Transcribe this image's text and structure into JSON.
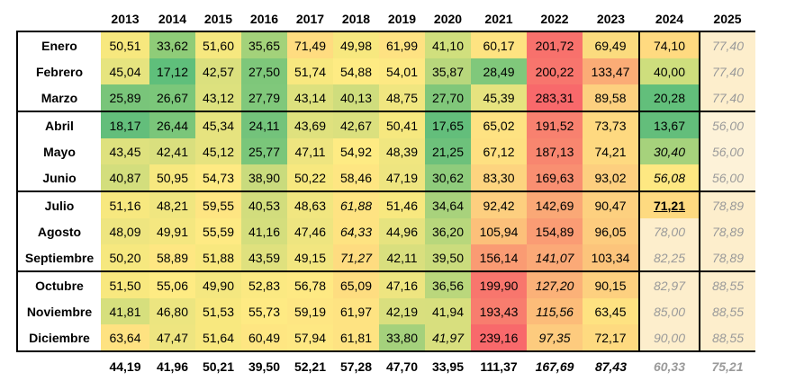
{
  "years": [
    "2013",
    "2014",
    "2015",
    "2016",
    "2017",
    "2018",
    "2019",
    "2020",
    "2021",
    "2022",
    "2023",
    "2024",
    "2025"
  ],
  "rows": [
    {
      "month": "Enero",
      "values": [
        "50,51",
        "33,62",
        "51,60",
        "35,65",
        "71,49",
        "49,98",
        "61,99",
        "41,10",
        "60,17",
        "201,72",
        "69,49",
        "74,10",
        "77,40"
      ],
      "colors": [
        "#f7e87e",
        "#8fcc78",
        "#f6e87f",
        "#a3d27a",
        "#ffdc80",
        "#f7e87f",
        "#fee282",
        "#d0df7d",
        "#fee381",
        "#f8716c",
        "#fbdb7e",
        "#ffda80",
        "#fdeecc"
      ]
    },
    {
      "month": "Febrero",
      "values": [
        "45,04",
        "17,12",
        "42,57",
        "27,50",
        "51,74",
        "54,88",
        "54,01",
        "35,87",
        "28,49",
        "200,22",
        "133,47",
        "40,00",
        "77,40"
      ],
      "colors": [
        "#e6e47f",
        "#5fbf7b",
        "#dbe07e",
        "#7ec77a",
        "#f8e87f",
        "#feeb83",
        "#fde983",
        "#b8d77c",
        "#80c87b",
        "#f8756d",
        "#fbac76",
        "#cede7d",
        "#fdeecc"
      ]
    },
    {
      "month": "Marzo",
      "values": [
        "25,89",
        "26,67",
        "43,12",
        "27,79",
        "43,14",
        "40,13",
        "48,75",
        "27,70",
        "45,39",
        "283,31",
        "89,58",
        "20,28",
        "77,40"
      ],
      "colors": [
        "#79c57a",
        "#7bc77a",
        "#dde17e",
        "#80c87b",
        "#dde17e",
        "#cfdd7d",
        "#f0e680",
        "#80c77a",
        "#e6e37f",
        "#f8696b",
        "#fdd07f",
        "#62bf7b",
        "#fdeecc"
      ]
    },
    {
      "month": "Abril",
      "values": [
        "18,17",
        "26,44",
        "45,34",
        "24,11",
        "43,69",
        "42,67",
        "50,41",
        "17,65",
        "65,02",
        "191,52",
        "73,73",
        "13,67",
        "56,00"
      ],
      "colors": [
        "#63be7b",
        "#7ac67a",
        "#e6e37f",
        "#73c37b",
        "#dfe17e",
        "#dbe07e",
        "#f6e87f",
        "#63be7b",
        "#fee282",
        "#f8816f",
        "#fed980",
        "#63be7b",
        "#fdf2d8"
      ]
    },
    {
      "month": "Mayo",
      "values": [
        "43,45",
        "42,41",
        "45,12",
        "25,77",
        "47,11",
        "54,92",
        "48,39",
        "21,25",
        "67,12",
        "187,13",
        "74,21",
        "30,40",
        "56,00"
      ],
      "colors": [
        "#dee17e",
        "#d9df7e",
        "#e6e37f",
        "#7ac67a",
        "#eee580",
        "#feeb83",
        "#f0e680",
        "#6dc17b",
        "#fee081",
        "#f8866f",
        "#fed980",
        "#a6d27c",
        "#fdf2d8"
      ]
    },
    {
      "month": "Junio",
      "values": [
        "40,87",
        "50,95",
        "54,73",
        "38,90",
        "50,22",
        "58,46",
        "47,19",
        "30,62",
        "83,30",
        "169,63",
        "93,02",
        "56,08",
        "56,00"
      ],
      "colors": [
        "#d3de7d",
        "#f7e87f",
        "#feea83",
        "#c9db7d",
        "#f7e87f",
        "#fee682",
        "#eee580",
        "#8fcc7c",
        "#fdd47f",
        "#f98f71",
        "#fdcf7f",
        "#fee882",
        "#fdf2d8"
      ]
    },
    {
      "month": "Julio",
      "values": [
        "51,16",
        "48,21",
        "59,55",
        "40,53",
        "48,63",
        "61,88",
        "51,46",
        "34,64",
        "92,42",
        "142,69",
        "90,47",
        "71,21",
        "78,89"
      ],
      "colors": [
        "#f7e87f",
        "#f0e680",
        "#fee582",
        "#d2dd7d",
        "#f1e680",
        "#fee382",
        "#f8e87f",
        "#a8d27c",
        "#fdcf7f",
        "#faa876",
        "#fdd07f",
        "#feda80",
        "#fdeecc"
      ]
    },
    {
      "month": "Agosto",
      "values": [
        "48,09",
        "49,91",
        "55,59",
        "41,16",
        "47,46",
        "64,33",
        "44,96",
        "36,20",
        "105,94",
        "154,89",
        "96,05",
        "78,00",
        "78,89"
      ],
      "colors": [
        "#eee580",
        "#f4e780",
        "#feea83",
        "#d4de7d",
        "#eee580",
        "#fee381",
        "#e6e37f",
        "#b8d77c",
        "#fcc07a",
        "#fa9c74",
        "#fdcc7e",
        "#fdeecc",
        "#fdeecc"
      ]
    },
    {
      "month": "Septiembre",
      "values": [
        "50,20",
        "58,89",
        "51,88",
        "43,59",
        "49,15",
        "71,27",
        "42,11",
        "39,50",
        "156,14",
        "141,07",
        "103,34",
        "82,25",
        "78,89"
      ],
      "colors": [
        "#f6e87f",
        "#fee782",
        "#f8e87f",
        "#dfe17e",
        "#f2e680",
        "#fedc80",
        "#d9df7e",
        "#cbdc7d",
        "#fa9b73",
        "#fba977",
        "#fcc47b",
        "#fdeecc",
        "#fdeecc"
      ]
    },
    {
      "month": "Octubre",
      "values": [
        "51,50",
        "55,06",
        "49,90",
        "52,83",
        "56,78",
        "65,09",
        "47,16",
        "36,56",
        "199,90",
        "127,20",
        "90,15",
        "82,97",
        "88,55"
      ],
      "colors": [
        "#f8e87f",
        "#feeb83",
        "#f4e780",
        "#fbe982",
        "#fee983",
        "#fedd80",
        "#eee580",
        "#bad77c",
        "#f8766d",
        "#fbb178",
        "#fdd07f",
        "#fdeecc",
        "#fdeecc"
      ]
    },
    {
      "month": "Noviembre",
      "values": [
        "41,81",
        "46,80",
        "51,53",
        "55,73",
        "59,19",
        "61,97",
        "42,19",
        "41,94",
        "193,43",
        "115,56",
        "63,45",
        "85,00",
        "88,55"
      ],
      "colors": [
        "#d6df7d",
        "#ece580",
        "#f8e87f",
        "#feea83",
        "#fee683",
        "#fee382",
        "#d9df7e",
        "#d8df7e",
        "#f87d6e",
        "#fcbc79",
        "#fee281",
        "#fdeecc",
        "#fdeecc"
      ]
    },
    {
      "month": "Diciembre",
      "values": [
        "63,64",
        "47,47",
        "51,64",
        "60,49",
        "57,94",
        "61,81",
        "33,80",
        "41,97",
        "239,16",
        "97,35",
        "72,17",
        "90,00",
        "88,55"
      ],
      "colors": [
        "#fee281",
        "#eee580",
        "#f8e87f",
        "#fee682",
        "#fee883",
        "#fee382",
        "#a4d17c",
        "#d8df7e",
        "#f8696b",
        "#fdcb7e",
        "#feda80",
        "#fdeecc",
        "#fdeecc"
      ]
    }
  ],
  "italic_cells": [
    [
      3,
      12
    ],
    [
      4,
      11
    ],
    [
      4,
      12
    ],
    [
      5,
      11
    ],
    [
      5,
      12
    ],
    [
      6,
      5
    ],
    [
      6,
      12
    ],
    [
      7,
      5
    ],
    [
      7,
      11
    ],
    [
      7,
      12
    ],
    [
      8,
      5
    ],
    [
      8,
      9
    ],
    [
      8,
      11
    ],
    [
      8,
      12
    ],
    [
      9,
      9
    ],
    [
      9,
      11
    ],
    [
      9,
      12
    ],
    [
      10,
      9
    ],
    [
      10,
      11
    ],
    [
      10,
      12
    ],
    [
      11,
      7
    ],
    [
      11,
      9
    ],
    [
      11,
      11
    ],
    [
      11,
      12
    ],
    [
      0,
      12
    ],
    [
      1,
      12
    ],
    [
      2,
      12
    ]
  ],
  "grey_cells": [
    [
      0,
      12
    ],
    [
      1,
      12
    ],
    [
      2,
      12
    ],
    [
      3,
      12
    ],
    [
      4,
      12
    ],
    [
      5,
      12
    ],
    [
      6,
      12
    ],
    [
      7,
      11
    ],
    [
      7,
      12
    ],
    [
      8,
      11
    ],
    [
      8,
      12
    ],
    [
      9,
      11
    ],
    [
      9,
      12
    ],
    [
      10,
      11
    ],
    [
      10,
      12
    ],
    [
      11,
      11
    ],
    [
      11,
      12
    ]
  ],
  "bold_cells": [
    [
      6,
      11
    ]
  ],
  "totals": [
    "44,19",
    "41,96",
    "50,21",
    "39,50",
    "52,21",
    "57,28",
    "47,70",
    "33,95",
    "111,37",
    "167,69",
    "87,43",
    "60,33",
    "75,21"
  ],
  "totals_italic": [
    9,
    10,
    11,
    12
  ],
  "totals_grey": [
    11,
    12
  ]
}
